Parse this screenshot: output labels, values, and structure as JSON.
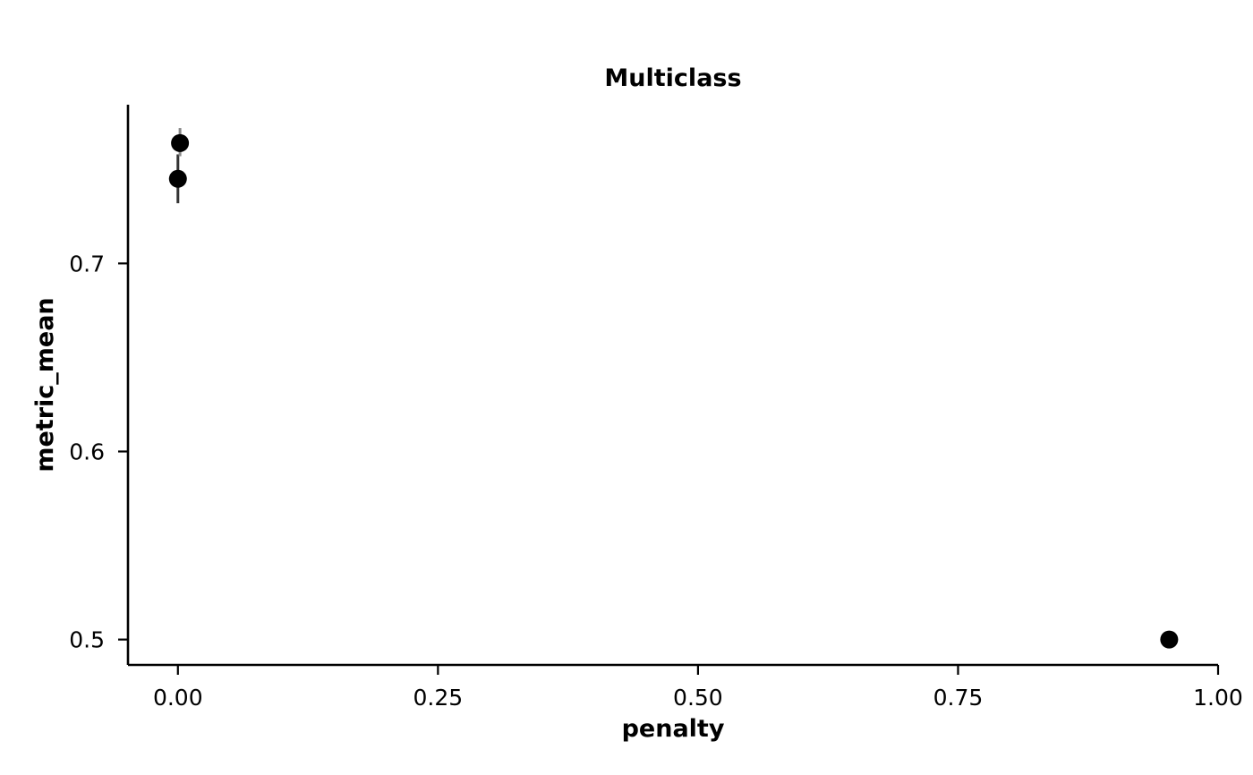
{
  "chart_data": {
    "type": "scatter",
    "title": "Multiclass",
    "xlabel": "penalty",
    "ylabel": "metric_mean",
    "xlim": [
      -0.048,
      1.0
    ],
    "ylim": [
      0.4865,
      0.7844
    ],
    "x_ticks": [
      {
        "value": 0.0,
        "label": "0.00"
      },
      {
        "value": 0.25,
        "label": "0.25"
      },
      {
        "value": 0.5,
        "label": "0.50"
      },
      {
        "value": 0.75,
        "label": "0.75"
      },
      {
        "value": 1.0,
        "label": "1.00"
      }
    ],
    "y_ticks": [
      {
        "value": 0.5,
        "label": "0.5"
      },
      {
        "value": 0.6,
        "label": "0.6"
      },
      {
        "value": 0.7,
        "label": "0.7"
      }
    ],
    "points": [
      {
        "x": 0.0,
        "y": 0.745,
        "err_low": 0.732,
        "err_high": 0.758,
        "err_color": "#333333"
      },
      {
        "x": 0.002,
        "y": 0.764,
        "err_low": 0.757,
        "err_high": 0.772,
        "err_color": "#888888"
      },
      {
        "x": 0.953,
        "y": 0.5,
        "err_low": 0.5,
        "err_high": 0.5,
        "err_color": "#333333"
      }
    ],
    "grid": false,
    "point_color": "#000000"
  }
}
